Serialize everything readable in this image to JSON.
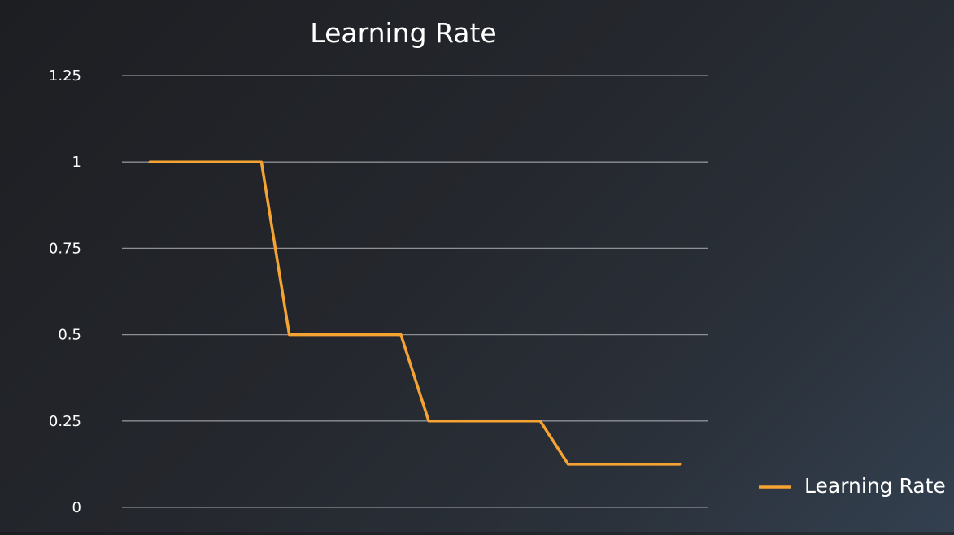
{
  "chart_data": {
    "type": "line",
    "title": "Learning Rate",
    "xlabel": "",
    "ylabel": "",
    "ylim": [
      0,
      1.25
    ],
    "yticks": [
      0,
      0.25,
      0.5,
      0.75,
      1,
      1.25
    ],
    "ytick_labels": [
      "0",
      "0.25",
      "0.5",
      "0.75",
      "1",
      "1.25"
    ],
    "grid": true,
    "legend": {
      "position": "right",
      "entries": [
        "Learning Rate"
      ]
    },
    "series": [
      {
        "name": "Learning Rate",
        "color": "#f5a433",
        "x": [
          0,
          20,
          25,
          45,
          50,
          70,
          75,
          95
        ],
        "y": [
          1,
          1,
          0.5,
          0.5,
          0.25,
          0.25,
          0.125,
          0.125
        ]
      }
    ]
  }
}
